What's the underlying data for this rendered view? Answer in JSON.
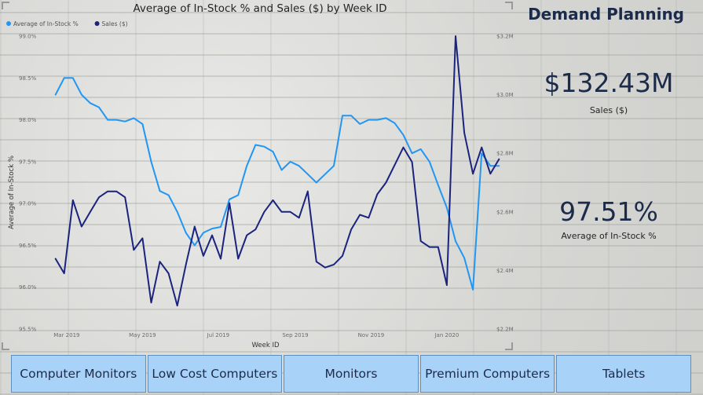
{
  "right_panel": {
    "title": "Demand Planning",
    "kpis": [
      {
        "value": "$132.43M",
        "label": "Sales ($)"
      },
      {
        "value": "97.51%",
        "label": "Average of In-Stock %"
      }
    ]
  },
  "filter_buttons": [
    {
      "label": "Computer Monitors"
    },
    {
      "label": "Low Cost Computers"
    },
    {
      "label": "Monitors"
    },
    {
      "label": "Premium Computers"
    },
    {
      "label": "Tablets"
    }
  ],
  "chart_data": {
    "type": "line",
    "title": "Average of In-Stock % and Sales ($) by Week ID",
    "xlabel": "Week ID",
    "ylabel": "Average of In-Stock %",
    "x_ticks": [
      "Mar 2019",
      "May 2019",
      "Jul 2019",
      "Sep 2019",
      "Nov 2019",
      "Jan 2020"
    ],
    "y_left_ticks": [
      "95.5%",
      "96.0%",
      "96.5%",
      "97.0%",
      "97.5%",
      "98.0%",
      "98.5%",
      "99.0%"
    ],
    "y_left_range": [
      95.5,
      99.0
    ],
    "y_right_ticks": [
      "$2.2M",
      "$2.4M",
      "$2.6M",
      "$2.8M",
      "$3.0M",
      "$3.2M"
    ],
    "y_right_range": [
      2.2,
      3.2
    ],
    "x_range": [
      "2019-02-12",
      "2020-02-20"
    ],
    "grid": false,
    "legend": "top-left",
    "colors": {
      "in_stock": "#2196f3",
      "sales": "#1a237e"
    },
    "series": [
      {
        "name": "Average of In-Stock %",
        "axis": "left",
        "x": [
          "2019-02-20",
          "2019-02-27",
          "2019-03-06",
          "2019-03-13",
          "2019-03-20",
          "2019-03-27",
          "2019-04-03",
          "2019-04-10",
          "2019-04-17",
          "2019-04-24",
          "2019-05-01",
          "2019-05-08",
          "2019-05-15",
          "2019-05-22",
          "2019-05-29",
          "2019-06-05",
          "2019-06-12",
          "2019-06-19",
          "2019-06-26",
          "2019-07-03",
          "2019-07-10",
          "2019-07-17",
          "2019-07-24",
          "2019-07-31",
          "2019-08-07",
          "2019-08-14",
          "2019-08-21",
          "2019-08-28",
          "2019-09-04",
          "2019-09-11",
          "2019-09-18",
          "2019-09-25",
          "2019-10-02",
          "2019-10-09",
          "2019-10-16",
          "2019-10-23",
          "2019-10-30",
          "2019-11-06",
          "2019-11-13",
          "2019-11-20",
          "2019-11-27",
          "2019-12-04",
          "2019-12-11",
          "2019-12-18",
          "2019-12-25",
          "2020-01-01",
          "2020-01-08",
          "2020-01-15",
          "2020-01-22",
          "2020-01-29",
          "2020-02-05",
          "2020-02-12"
        ],
        "values": [
          98.3,
          98.5,
          98.5,
          98.3,
          98.2,
          98.15,
          98.0,
          98.0,
          97.98,
          98.02,
          97.95,
          97.5,
          97.15,
          97.1,
          96.9,
          96.65,
          96.5,
          96.65,
          96.7,
          96.72,
          97.05,
          97.1,
          97.45,
          97.7,
          97.68,
          97.62,
          97.4,
          97.5,
          97.45,
          97.35,
          97.25,
          97.35,
          97.45,
          98.05,
          98.05,
          97.95,
          98.0,
          98.0,
          98.02,
          97.96,
          97.82,
          97.6,
          97.65,
          97.5,
          97.22,
          96.95,
          96.55,
          96.35,
          95.97,
          97.6,
          97.45,
          97.45
        ]
      },
      {
        "name": "Sales ($)",
        "axis": "right",
        "x": [
          "2019-02-20",
          "2019-02-27",
          "2019-03-06",
          "2019-03-13",
          "2019-03-20",
          "2019-03-27",
          "2019-04-03",
          "2019-04-10",
          "2019-04-17",
          "2019-04-24",
          "2019-05-01",
          "2019-05-08",
          "2019-05-15",
          "2019-05-22",
          "2019-05-29",
          "2019-06-05",
          "2019-06-12",
          "2019-06-19",
          "2019-06-26",
          "2019-07-03",
          "2019-07-10",
          "2019-07-17",
          "2019-07-24",
          "2019-07-31",
          "2019-08-07",
          "2019-08-14",
          "2019-08-21",
          "2019-08-28",
          "2019-09-04",
          "2019-09-11",
          "2019-09-18",
          "2019-09-25",
          "2019-10-02",
          "2019-10-09",
          "2019-10-16",
          "2019-10-23",
          "2019-10-30",
          "2019-11-06",
          "2019-11-13",
          "2019-11-20",
          "2019-11-27",
          "2019-12-04",
          "2019-12-11",
          "2019-12-18",
          "2019-12-25",
          "2020-01-01",
          "2020-01-08",
          "2020-01-15",
          "2020-01-22",
          "2020-01-29",
          "2020-02-05",
          "2020-02-12"
        ],
        "values": [
          2.44,
          2.39,
          2.64,
          2.55,
          2.6,
          2.65,
          2.67,
          2.67,
          2.65,
          2.47,
          2.51,
          2.29,
          2.43,
          2.39,
          2.28,
          2.42,
          2.55,
          2.45,
          2.52,
          2.44,
          2.63,
          2.44,
          2.52,
          2.54,
          2.6,
          2.64,
          2.6,
          2.6,
          2.58,
          2.67,
          2.43,
          2.41,
          2.42,
          2.45,
          2.54,
          2.59,
          2.58,
          2.66,
          2.7,
          2.76,
          2.82,
          2.77,
          2.5,
          2.48,
          2.48,
          2.35,
          3.2,
          2.87,
          2.73,
          2.82,
          2.73,
          2.78
        ]
      }
    ]
  }
}
